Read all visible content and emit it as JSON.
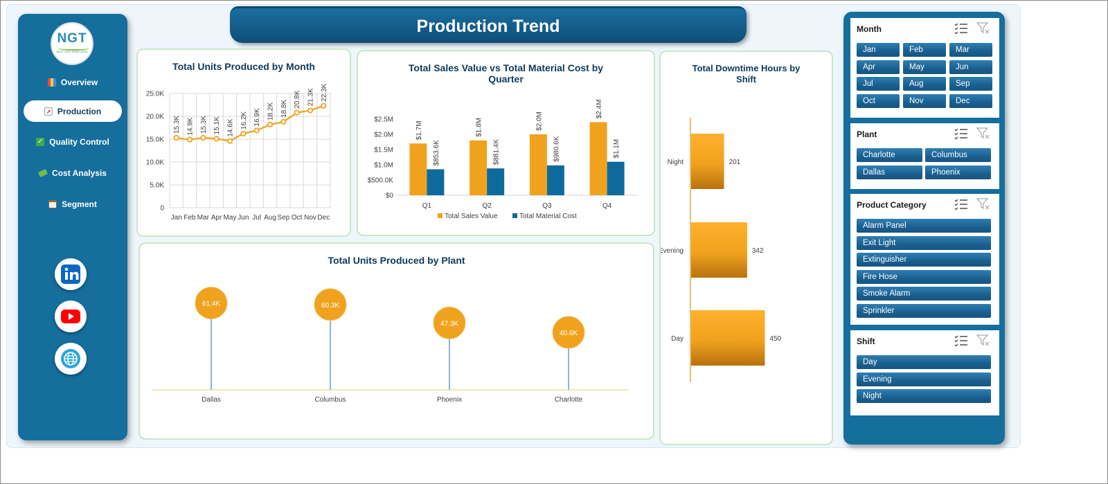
{
  "title": "Production Trend",
  "logo": {
    "text": "NGT",
    "subtext": "NEXT GEN TEMPLATES"
  },
  "nav": [
    {
      "label": "Overview",
      "icon": "bar-chart-icon",
      "active": false
    },
    {
      "label": "Production",
      "icon": "trend-chart-icon",
      "active": true
    },
    {
      "label": "Quality Control",
      "icon": "checkmark-icon",
      "active": false
    },
    {
      "label": "Cost Analysis",
      "icon": "money-icon",
      "active": false
    },
    {
      "label": "Segment",
      "icon": "clipboard-icon",
      "active": false
    }
  ],
  "social": [
    {
      "name": "linkedin-icon",
      "color": "#0a66c2"
    },
    {
      "name": "youtube-icon",
      "color": "#ff0000"
    },
    {
      "name": "website-globe-icon",
      "color": "#1a6fb0"
    }
  ],
  "colors": {
    "accent": "#156e9c",
    "orange": "#f0a21e",
    "navy": "#0f6a9c",
    "title": "#0d3a5c"
  },
  "charts": {
    "monthly": {
      "title": "Total Units Produced by Month",
      "chart_data": {
        "type": "line",
        "categories": [
          "Jan",
          "Feb",
          "Mar",
          "Apr",
          "May",
          "Jun",
          "Jul",
          "Aug",
          "Sep",
          "Oct",
          "Nov",
          "Dec"
        ],
        "values": [
          15300,
          14900,
          15300,
          15100,
          14600,
          16200,
          16900,
          18200,
          18800,
          20800,
          21300,
          22300
        ],
        "labels": [
          "15.3K",
          "14.9K",
          "15.3K",
          "15.1K",
          "14.6K",
          "16.2K",
          "16.9K",
          "18.2K",
          "18.8K",
          "20.8K",
          "21.3K",
          "22.3K"
        ],
        "yticks": [
          "0",
          "5.0K",
          "10.0K",
          "15.0K",
          "20.0K",
          "25.0K"
        ],
        "ylim": [
          0,
          25000
        ],
        "grid": true,
        "color": "#f0a21e"
      }
    },
    "quarterly": {
      "title_line1": "Total Sales Value vs Total Material Cost by",
      "title_line2": "Quarter",
      "chart_data": {
        "type": "bar",
        "categories": [
          "Q1",
          "Q2",
          "Q3",
          "Q4"
        ],
        "series": [
          {
            "name": "Total Sales Value",
            "values": [
              1700000,
              1800000,
              2000000,
              2400000
            ],
            "labels": [
              "$1.7M",
              "$1.8M",
              "$2.0M",
              "$2.4M"
            ],
            "color": "#f0a21e"
          },
          {
            "name": "Total Material Cost",
            "values": [
              853600,
              881400,
              980600,
              1100000
            ],
            "labels": [
              "$853.6K",
              "$881.4K",
              "$980.6K",
              "$1.1M"
            ],
            "color": "#0f6a9c"
          }
        ],
        "yticks": [
          "$0",
          "$500.0K",
          "$1.0M",
          "$1.5M",
          "$2.0M",
          "$2.5M"
        ],
        "ylim": [
          0,
          2500000
        ],
        "legend": "bottom"
      }
    },
    "plant": {
      "title": "Total Units Produced by Plant",
      "chart_data": {
        "type": "lollipop",
        "categories": [
          "Dallas",
          "Columbus",
          "Phoenix",
          "Charlotte"
        ],
        "values": [
          61400,
          60300,
          47300,
          40600
        ],
        "labels": [
          "61.4K",
          "60.3K",
          "47.3K",
          "40.6K"
        ],
        "color": "#f0a21e"
      }
    },
    "downtime": {
      "title_line1": "Total Downtime Hours by",
      "title_line2": "Shift",
      "chart_data": {
        "type": "bar",
        "orientation": "horizontal",
        "categories": [
          "Night",
          "Evening",
          "Day"
        ],
        "values": [
          201,
          342,
          450
        ],
        "labels": [
          "201",
          "342",
          "450"
        ],
        "color": "#f0a21e"
      }
    }
  },
  "slicers": [
    {
      "title": "Month",
      "items": [
        "Jan",
        "Feb",
        "Mar",
        "Apr",
        "May",
        "Jun",
        "Jul",
        "Aug",
        "Sep",
        "Oct",
        "Nov",
        "Dec"
      ]
    },
    {
      "title": "Plant",
      "items": [
        "Charlotte",
        "Columbus",
        "Dallas",
        "Phoenix"
      ]
    },
    {
      "title": "Product Category",
      "items": [
        "Alarm Panel",
        "Exit Light",
        "Extinguisher",
        "Fire Hose",
        "Smoke Alarm",
        "Sprinkler"
      ]
    },
    {
      "title": "Shift",
      "items": [
        "Day",
        "Evening",
        "Night"
      ]
    }
  ]
}
